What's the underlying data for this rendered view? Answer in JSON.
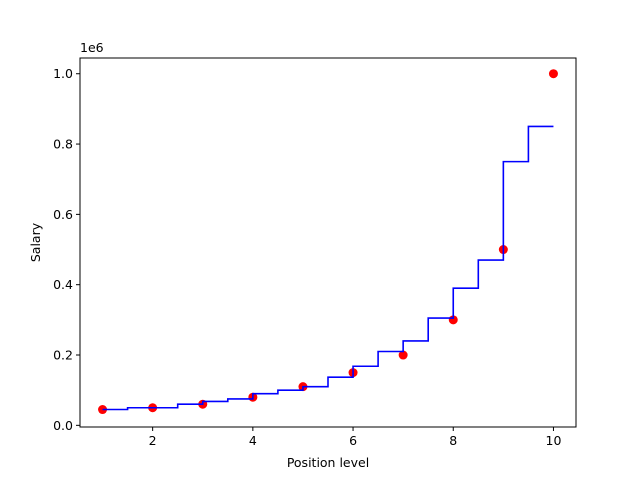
{
  "chart_data": {
    "type": "scatter",
    "xlabel": "Position level",
    "ylabel": "Salary",
    "y_offset_label": "1e6",
    "xlim": [
      0.55,
      10.45
    ],
    "ylim": [
      -0.00475,
      1.04475
    ],
    "x_ticks": [
      2,
      4,
      6,
      8,
      10
    ],
    "x_tick_labels": [
      "2",
      "4",
      "6",
      "8",
      "10"
    ],
    "y_ticks": [
      0.0,
      0.2,
      0.4,
      0.6,
      0.8,
      1.0
    ],
    "y_tick_labels": [
      "0.0",
      "0.2",
      "0.4",
      "0.6",
      "0.8",
      "1.0"
    ],
    "grid": false,
    "colors": {
      "points": "#ff0000",
      "line": "#0000ff"
    },
    "series": [
      {
        "kind": "scatter",
        "x": [
          1,
          2,
          3,
          4,
          5,
          6,
          7,
          8,
          9,
          10
        ],
        "y": [
          0.045,
          0.05,
          0.06,
          0.08,
          0.11,
          0.15,
          0.2,
          0.3,
          0.5,
          1.0
        ]
      },
      {
        "kind": "step-line",
        "x": [
          1.0,
          1.5,
          2.0,
          2.5,
          3.0,
          3.5,
          4.0,
          4.5,
          5.0,
          5.5,
          6.0,
          6.5,
          7.0,
          7.5,
          8.0,
          8.5,
          9.0,
          9.5,
          10.0
        ],
        "y": [
          0.045,
          0.05,
          0.05,
          0.06,
          0.068,
          0.075,
          0.09,
          0.1,
          0.11,
          0.137,
          0.168,
          0.21,
          0.24,
          0.305,
          0.39,
          0.47,
          0.75,
          0.85,
          0.85
        ]
      }
    ]
  }
}
